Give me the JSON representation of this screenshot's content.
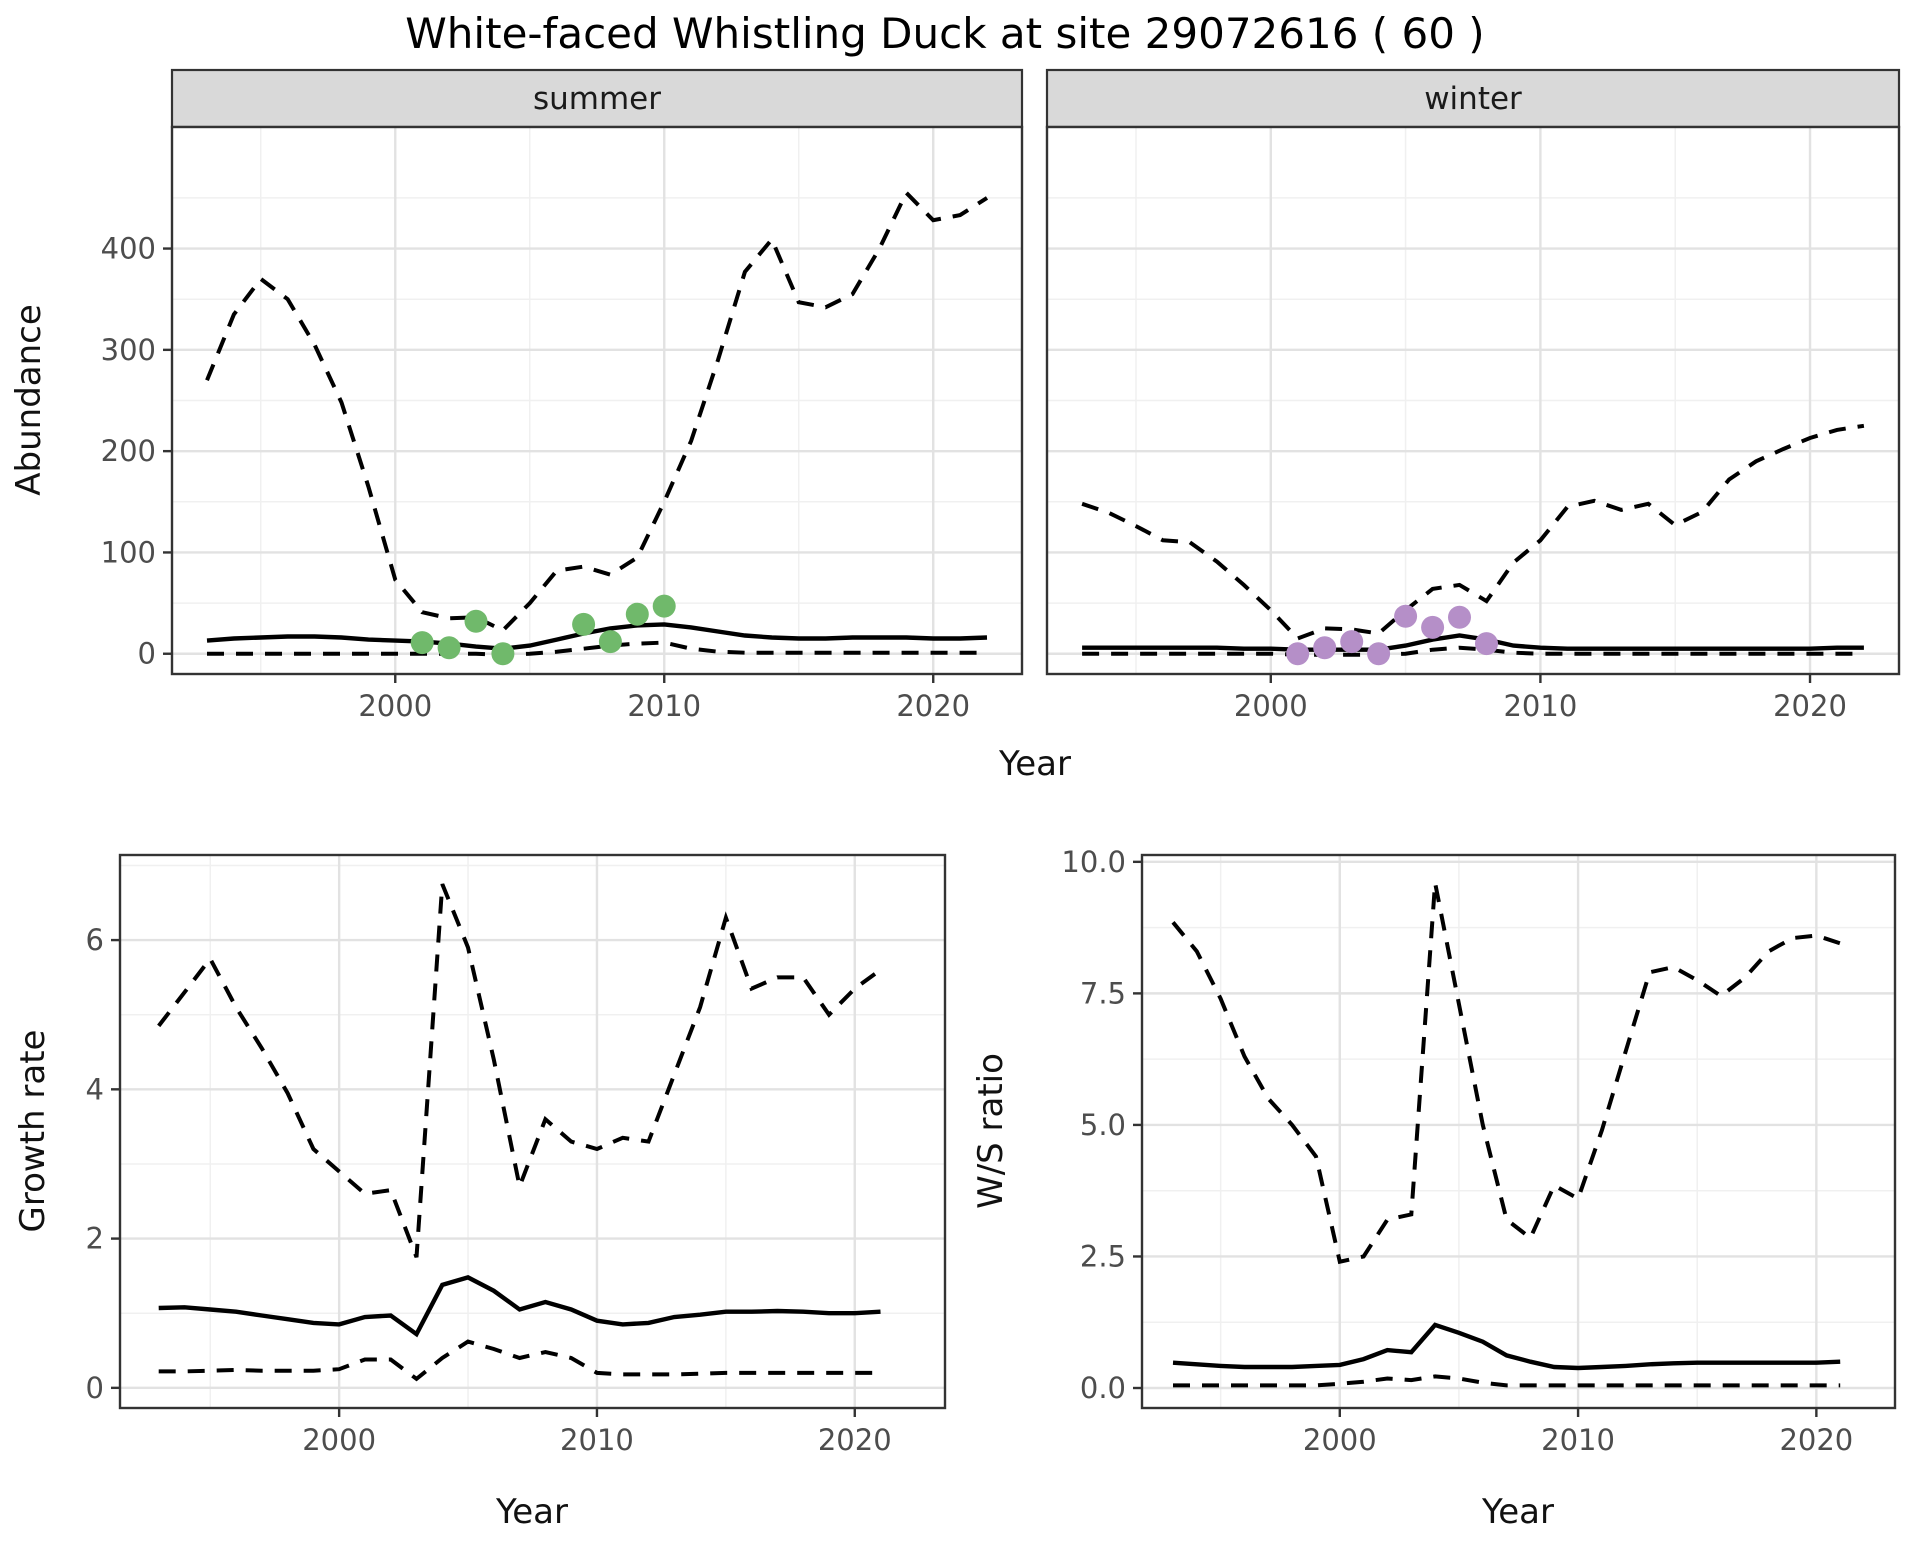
{
  "title": "White-faced Whistling Duck at site 29072616 ( 60 )",
  "facets": {
    "summer": "summer",
    "winter": "winter"
  },
  "labels": {
    "abundance": "Abundance",
    "year": "Year",
    "growth_rate": "Growth rate",
    "ws_ratio": "W/S ratio"
  },
  "colors": {
    "summer_points": "#70b96b",
    "winter_points": "#b58fc8",
    "strip_bg": "#d9d9d9",
    "strip_border": "#333333",
    "panel_border": "#333333",
    "grid_major": "#e2e2e2",
    "grid_minor": "#f0f0f0",
    "tick_mark": "#333333",
    "tick_label": "#4d4d4d",
    "line": "#000000",
    "panel_bg": "#ffffff"
  },
  "chart_data": [
    {
      "id": "abundance-summer",
      "type": "line",
      "facet_label": "summer",
      "xlabel": "Year",
      "ylabel": "Abundance",
      "x_range": [
        1991.7,
        2023.3
      ],
      "y_range": [
        -20,
        520
      ],
      "x_ticks": [
        2000,
        2010,
        2020
      ],
      "x_tick_labels": [
        "2000",
        "2010",
        "2020"
      ],
      "x_minor": [
        1995,
        2005,
        2015
      ],
      "y_ticks": [
        0,
        100,
        200,
        300,
        400
      ],
      "y_tick_labels": [
        "0",
        "100",
        "200",
        "300",
        "400"
      ],
      "y_minor": [
        50,
        150,
        250,
        350,
        450
      ],
      "grid": true,
      "legend": false,
      "x": [
        1993,
        1994,
        1995,
        1996,
        1997,
        1998,
        1999,
        2000,
        2001,
        2002,
        2003,
        2004,
        2005,
        2006,
        2007,
        2008,
        2009,
        2010,
        2011,
        2012,
        2013,
        2014,
        2015,
        2016,
        2017,
        2018,
        2019,
        2020,
        2021,
        2022
      ],
      "series": [
        {
          "name": "upper-95ci",
          "style": "dashed",
          "values": [
            270,
            335,
            370,
            350,
            305,
            248,
            165,
            73,
            41,
            35,
            36,
            23,
            50,
            82,
            86,
            78,
            95,
            150,
            210,
            290,
            377,
            409,
            347,
            342,
            355,
            400,
            455,
            428,
            433,
            450
          ]
        },
        {
          "name": "median",
          "style": "solid",
          "values": [
            13,
            15,
            16,
            17,
            17,
            16,
            14,
            13,
            12,
            10,
            7,
            5,
            8,
            14,
            20,
            25,
            28,
            29,
            26,
            22,
            18,
            16,
            15,
            15,
            16,
            16,
            16,
            15,
            15,
            16
          ]
        },
        {
          "name": "lower-95ci",
          "style": "dashed",
          "values": [
            0,
            0,
            0,
            0,
            0,
            0,
            0,
            0,
            0,
            0,
            0,
            -1,
            0,
            2,
            5,
            8,
            10,
            11,
            5,
            2,
            1,
            1,
            1,
            1,
            1,
            1,
            1,
            1,
            1,
            1
          ]
        }
      ],
      "points": {
        "name": "observed-counts",
        "color": "#70b96b",
        "x": [
          2001,
          2002,
          2003,
          2004,
          2007,
          2008,
          2009,
          2010
        ],
        "y": [
          11,
          6,
          32,
          0,
          29,
          12,
          39,
          47
        ]
      }
    },
    {
      "id": "abundance-winter",
      "type": "line",
      "facet_label": "winter",
      "xlabel": "Year",
      "ylabel": "Abundance",
      "x_range": [
        1991.7,
        2023.3
      ],
      "y_range": [
        -20,
        520
      ],
      "x_ticks": [
        2000,
        2010,
        2020
      ],
      "x_tick_labels": [
        "2000",
        "2010",
        "2020"
      ],
      "x_minor": [
        1995,
        2005,
        2015
      ],
      "y_ticks": [
        0,
        100,
        200,
        300,
        400
      ],
      "y_tick_labels": [],
      "y_minor": [
        50,
        150,
        250,
        350,
        450
      ],
      "grid": true,
      "legend": false,
      "x": [
        1993,
        1994,
        1995,
        1996,
        1997,
        1998,
        1999,
        2000,
        2001,
        2002,
        2003,
        2004,
        2005,
        2006,
        2007,
        2008,
        2009,
        2010,
        2011,
        2012,
        2013,
        2014,
        2015,
        2016,
        2017,
        2018,
        2019,
        2020,
        2021,
        2022
      ],
      "series": [
        {
          "name": "upper-95ci",
          "style": "dashed",
          "values": [
            148,
            139,
            126,
            112,
            110,
            91,
            68,
            43,
            15,
            25,
            24,
            20,
            43,
            64,
            68,
            52,
            90,
            112,
            145,
            151,
            142,
            148,
            127,
            140,
            172,
            190,
            202,
            213,
            221,
            225
          ]
        },
        {
          "name": "median",
          "style": "solid",
          "values": [
            6,
            6,
            6,
            6,
            6,
            6,
            5,
            5,
            4,
            4,
            4,
            4,
            8,
            14,
            18,
            14,
            8,
            6,
            5,
            5,
            5,
            5,
            5,
            5,
            5,
            5,
            5,
            5,
            6,
            6
          ]
        },
        {
          "name": "lower-95ci",
          "style": "dashed",
          "values": [
            0,
            0,
            0,
            0,
            0,
            0,
            0,
            0,
            -1,
            -1,
            -1,
            -1,
            0,
            4,
            6,
            4,
            1,
            0,
            0,
            0,
            0,
            0,
            0,
            0,
            0,
            0,
            0,
            0,
            0,
            0
          ]
        }
      ],
      "points": {
        "name": "observed-counts",
        "color": "#b58fc8",
        "x": [
          2001,
          2002,
          2003,
          2004,
          2005,
          2006,
          2007,
          2008
        ],
        "y": [
          0,
          6,
          12,
          0,
          37,
          26,
          36,
          10
        ]
      }
    },
    {
      "id": "growth-rate",
      "type": "line",
      "facet_label": "",
      "xlabel": "Year",
      "ylabel": "Growth rate",
      "x_range": [
        1991.5,
        2023.5
      ],
      "y_range": [
        -0.27,
        7.14
      ],
      "x_ticks": [
        2000,
        2010,
        2020
      ],
      "x_tick_labels": [
        "2000",
        "2010",
        "2020"
      ],
      "x_minor": [
        1995,
        2005,
        2015
      ],
      "y_ticks": [
        0,
        2,
        4,
        6
      ],
      "y_tick_labels": [
        "0",
        "2",
        "4",
        "6"
      ],
      "y_minor": [
        1,
        3,
        5,
        7
      ],
      "grid": true,
      "legend": false,
      "x": [
        1993,
        1994,
        1995,
        1996,
        1997,
        1998,
        1999,
        2000,
        2001,
        2002,
        2003,
        2004,
        2005,
        2006,
        2007,
        2008,
        2009,
        2010,
        2011,
        2012,
        2013,
        2014,
        2015,
        2016,
        2017,
        2018,
        2019,
        2020,
        2021
      ],
      "series": [
        {
          "name": "upper-95ci",
          "style": "dashed",
          "values": [
            4.85,
            5.3,
            5.75,
            5.1,
            4.55,
            3.95,
            3.2,
            2.9,
            2.6,
            2.65,
            1.75,
            6.75,
            5.9,
            4.4,
            2.7,
            3.6,
            3.3,
            3.2,
            3.35,
            3.3,
            4.2,
            5.1,
            6.3,
            5.35,
            5.5,
            5.5,
            5.0,
            5.35,
            5.6
          ]
        },
        {
          "name": "median",
          "style": "solid",
          "values": [
            1.07,
            1.08,
            1.05,
            1.02,
            0.97,
            0.92,
            0.87,
            0.85,
            0.95,
            0.97,
            0.72,
            1.38,
            1.48,
            1.3,
            1.05,
            1.15,
            1.05,
            0.9,
            0.85,
            0.87,
            0.95,
            0.98,
            1.02,
            1.02,
            1.03,
            1.02,
            1.0,
            1.0,
            1.02
          ]
        },
        {
          "name": "lower-95ci",
          "style": "dashed",
          "values": [
            0.22,
            0.22,
            0.23,
            0.24,
            0.23,
            0.23,
            0.23,
            0.25,
            0.38,
            0.38,
            0.12,
            0.4,
            0.62,
            0.52,
            0.4,
            0.48,
            0.4,
            0.2,
            0.18,
            0.18,
            0.18,
            0.19,
            0.2,
            0.2,
            0.2,
            0.2,
            0.2,
            0.2,
            0.2
          ]
        }
      ],
      "points": null
    },
    {
      "id": "ws-ratio",
      "type": "line",
      "facet_label": "",
      "xlabel": "Year",
      "ylabel": "W/S ratio",
      "x_range": [
        1991.7,
        2023.3
      ],
      "y_range": [
        -0.38,
        10.13
      ],
      "x_ticks": [
        2000,
        2010,
        2020
      ],
      "x_tick_labels": [
        "2000",
        "2010",
        "2020"
      ],
      "x_minor": [
        1995,
        2005,
        2015
      ],
      "y_ticks": [
        0,
        2.5,
        5,
        7.5,
        10
      ],
      "y_tick_labels": [
        "0.0",
        "2.5",
        "5.0",
        "7.5",
        "10.0"
      ],
      "y_minor": [
        1.25,
        3.75,
        6.25,
        8.75
      ],
      "grid": true,
      "legend": false,
      "x": [
        1993,
        1994,
        1995,
        1996,
        1997,
        1998,
        1999,
        2000,
        2001,
        2002,
        2003,
        2004,
        2005,
        2006,
        2007,
        2008,
        2009,
        2010,
        2011,
        2012,
        2013,
        2014,
        2015,
        2016,
        2017,
        2018,
        2019,
        2020,
        2021
      ],
      "series": [
        {
          "name": "upper-95ci",
          "style": "dashed",
          "values": [
            8.85,
            8.3,
            7.4,
            6.3,
            5.5,
            5.0,
            4.4,
            2.4,
            2.5,
            3.2,
            3.3,
            9.6,
            7.3,
            5.0,
            3.2,
            2.85,
            3.85,
            3.6,
            4.9,
            6.4,
            7.9,
            8.0,
            7.75,
            7.45,
            7.8,
            8.3,
            8.55,
            8.6,
            8.45
          ]
        },
        {
          "name": "median",
          "style": "solid",
          "values": [
            0.48,
            0.45,
            0.42,
            0.4,
            0.4,
            0.4,
            0.42,
            0.44,
            0.55,
            0.72,
            0.68,
            1.2,
            1.05,
            0.88,
            0.62,
            0.5,
            0.4,
            0.38,
            0.4,
            0.42,
            0.45,
            0.47,
            0.48,
            0.48,
            0.48,
            0.48,
            0.48,
            0.48,
            0.5
          ]
        },
        {
          "name": "lower-95ci",
          "style": "dashed",
          "values": [
            0.05,
            0.05,
            0.05,
            0.05,
            0.05,
            0.05,
            0.05,
            0.08,
            0.12,
            0.18,
            0.15,
            0.22,
            0.18,
            0.1,
            0.05,
            0.05,
            0.05,
            0.05,
            0.05,
            0.05,
            0.05,
            0.05,
            0.05,
            0.05,
            0.05,
            0.05,
            0.05,
            0.05,
            0.05
          ]
        }
      ],
      "points": null
    }
  ]
}
